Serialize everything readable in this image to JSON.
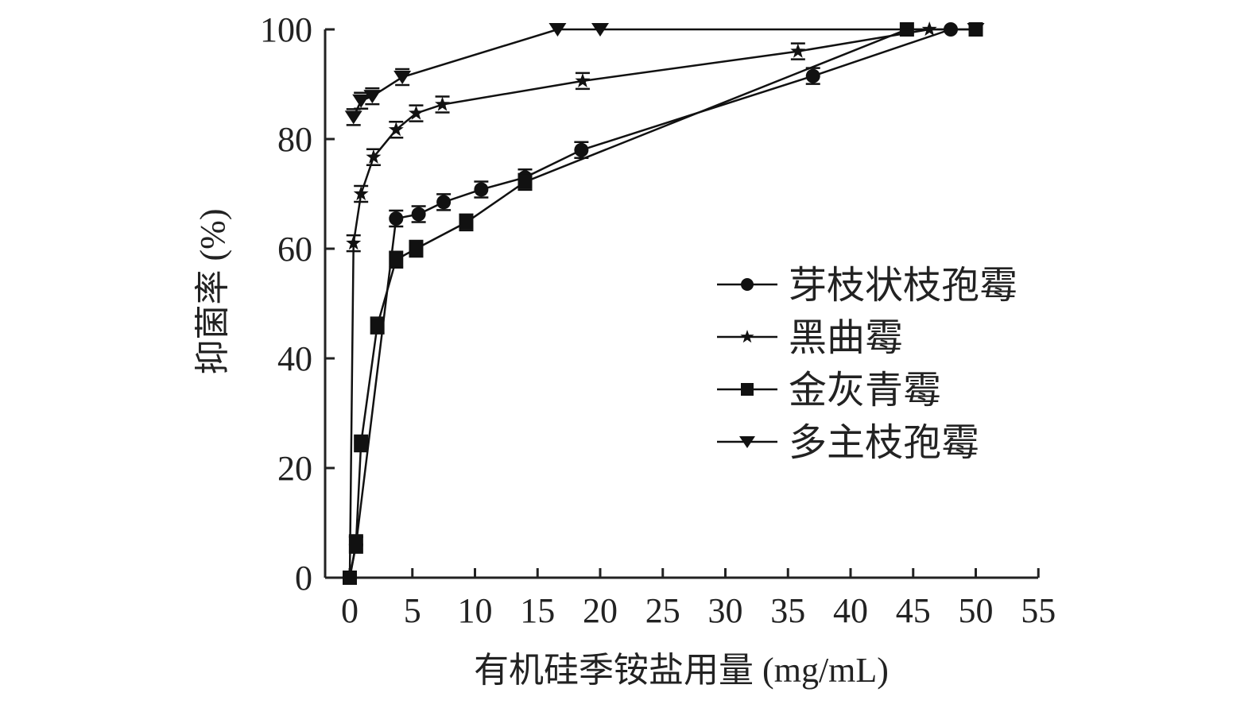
{
  "chart_data": {
    "type": "line",
    "title": "",
    "xlabel": "有机硅季铵盐用量 (mg/mL)",
    "ylabel": "抑菌率 (%)",
    "xlim": [
      -2,
      55
    ],
    "ylim": [
      0,
      100
    ],
    "xticks": [
      0,
      5,
      10,
      15,
      20,
      25,
      30,
      35,
      40,
      45,
      50,
      55
    ],
    "yticks": [
      0,
      20,
      40,
      60,
      80,
      100
    ],
    "grid": false,
    "legend_position": "right",
    "series": [
      {
        "name": "芽枝状枝孢霉",
        "marker": "circle",
        "x": [
          0,
          0.5,
          3.7,
          5.5,
          7.5,
          10.5,
          14,
          18.5,
          37,
          48
        ],
        "y": [
          0,
          6,
          65.5,
          66.3,
          68.5,
          70.8,
          73,
          78,
          91.5,
          100
        ]
      },
      {
        "name": "黑曲霉",
        "marker": "star",
        "x": [
          0,
          0.3,
          0.9,
          1.9,
          3.7,
          5.3,
          7.4,
          18.6,
          35.8,
          46.3
        ],
        "y": [
          0,
          61,
          70,
          76.7,
          81.7,
          84.7,
          86.3,
          90.6,
          96,
          100
        ]
      },
      {
        "name": "金灰青霉",
        "marker": "square",
        "x": [
          0,
          0.5,
          0.9,
          2.2,
          3.7,
          5.3,
          9.3,
          14,
          44.5,
          50
        ],
        "y": [
          0,
          6.3,
          24.5,
          46,
          58,
          60,
          64.8,
          72.2,
          100,
          100
        ]
      },
      {
        "name": "多主枝孢霉",
        "marker": "triangle-down",
        "x": [
          0.3,
          0.9,
          1.8,
          4.2,
          16.6,
          20,
          50
        ],
        "y": [
          84,
          87,
          87.8,
          91.3,
          100,
          100,
          100
        ]
      }
    ]
  }
}
